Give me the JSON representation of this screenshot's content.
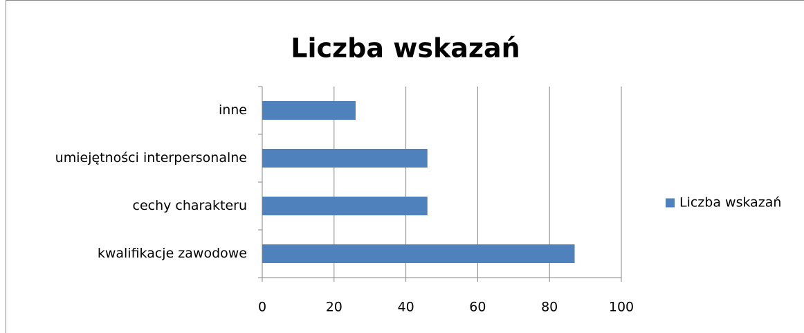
{
  "chart_data": {
    "type": "bar",
    "orientation": "horizontal",
    "title": "Liczba wskazań",
    "categories": [
      "kwalifikacje zawodowe",
      "cechy charakteru",
      "umiejętności interpersonalne",
      "inne"
    ],
    "series": [
      {
        "name": "Liczba wskazań",
        "color": "#4f81bd",
        "values": [
          87,
          46,
          46,
          26
        ]
      }
    ],
    "xlim": [
      0,
      100
    ],
    "xticks": [
      0,
      20,
      40,
      60,
      80,
      100
    ],
    "grid": true,
    "legend": "right"
  }
}
